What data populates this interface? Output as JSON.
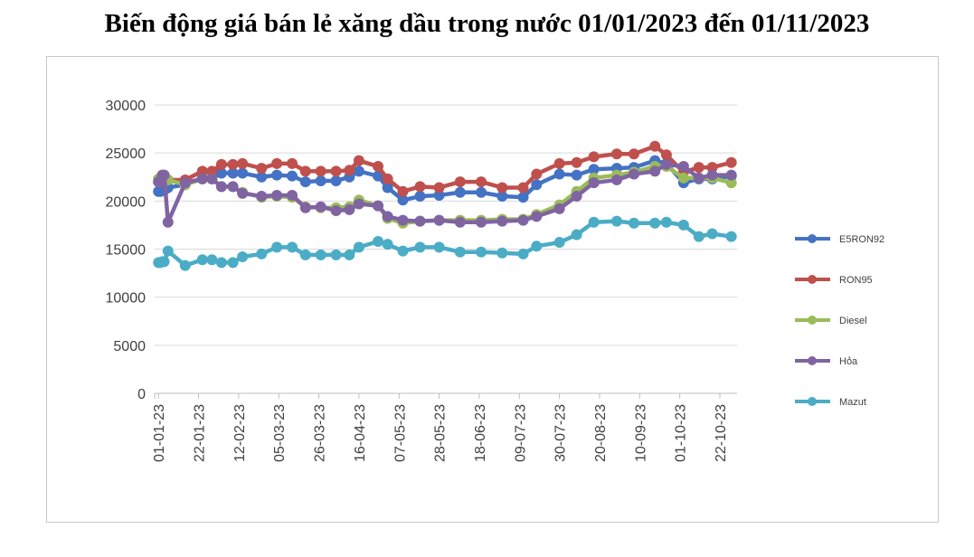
{
  "chart_data": {
    "type": "line",
    "title": "Biến động giá bán lẻ xăng dầu trong nước 01/01/2023 đến 01/11/2023",
    "xlabel": "",
    "ylabel": "",
    "ylim": [
      0,
      30000
    ],
    "yticks": [
      "0",
      "5000",
      "10000",
      "15000",
      "20000",
      "25000",
      "30000"
    ],
    "grid": true,
    "legend_position": "right",
    "tick_labels": [
      "01-01-23",
      "22-01-23",
      "12-02-23",
      "05-03-23",
      "26-03-23",
      "16-04-23",
      "07-05-23",
      "28-05-23",
      "18-06-23",
      "09-07-23",
      "30-07-23",
      "20-08-23",
      "10-09-23",
      "01-10-23",
      "22-10-23"
    ],
    "tick_days": [
      0,
      21,
      42,
      63,
      84,
      105,
      126,
      147,
      168,
      189,
      210,
      231,
      252,
      273,
      294
    ],
    "x_range_days": [
      -2,
      303
    ],
    "x": [
      0,
      1,
      2,
      3,
      5,
      14,
      23,
      28,
      33,
      39,
      44,
      54,
      62,
      70,
      77,
      85,
      93,
      100,
      105,
      115,
      120,
      128,
      137,
      147,
      158,
      169,
      180,
      191,
      198,
      210,
      219,
      228,
      240,
      249,
      260,
      266,
      275,
      283,
      290,
      300
    ],
    "series": [
      {
        "name": "E5RON92",
        "color": "#4472C4",
        "values": [
          21000,
          21000,
          21300,
          21100,
          21400,
          21700,
          22400,
          22400,
          22900,
          22900,
          22900,
          22500,
          22700,
          22600,
          22000,
          22100,
          22100,
          22500,
          23100,
          22600,
          21400,
          20100,
          20500,
          20600,
          20900,
          20900,
          20500,
          20400,
          21700,
          22800,
          22700,
          23300,
          23400,
          23500,
          24200,
          23900,
          21900,
          22300,
          22300,
          22600
        ]
      },
      {
        "name": "RON95",
        "color": "#C0504D",
        "values": [
          22000,
          22000,
          22100,
          22000,
          22200,
          22200,
          23100,
          23100,
          23800,
          23800,
          23900,
          23400,
          23900,
          23900,
          23100,
          23100,
          23100,
          23200,
          24200,
          23600,
          22300,
          21000,
          21500,
          21400,
          22000,
          22000,
          21400,
          21400,
          22800,
          23900,
          24000,
          24600,
          24900,
          24900,
          25700,
          24800,
          23000,
          23500,
          23500,
          24000
        ]
      },
      {
        "name": "Diesel",
        "color": "#9BBB59",
        "values": [
          22300,
          22300,
          22300,
          22300,
          22200,
          21700,
          22300,
          22300,
          21500,
          21500,
          20900,
          20400,
          20500,
          20400,
          19400,
          19300,
          19300,
          19400,
          20100,
          19500,
          18200,
          17700,
          17900,
          18000,
          18000,
          18000,
          18100,
          18100,
          18600,
          19600,
          21000,
          22400,
          22700,
          23000,
          23600,
          23600,
          22400,
          22400,
          22400,
          21900
        ]
      },
      {
        "name": "Hỏa",
        "color": "#8064A2",
        "values": [
          22000,
          22000,
          22700,
          22700,
          17800,
          21900,
          22300,
          22300,
          21500,
          21500,
          20800,
          20500,
          20600,
          20600,
          19300,
          19400,
          19000,
          19100,
          19700,
          19500,
          18400,
          18000,
          17900,
          18000,
          17800,
          17800,
          17900,
          18000,
          18400,
          19200,
          20500,
          21900,
          22200,
          22800,
          23100,
          23800,
          23600,
          22400,
          22700,
          22700
        ]
      },
      {
        "name": "Mazut",
        "color": "#4BACC6",
        "values": [
          13600,
          13600,
          13700,
          13700,
          14800,
          13300,
          13900,
          13900,
          13600,
          13600,
          14200,
          14500,
          15200,
          15200,
          14400,
          14400,
          14400,
          14400,
          15200,
          15800,
          15500,
          14800,
          15200,
          15200,
          14700,
          14700,
          14600,
          14500,
          15300,
          15700,
          16500,
          17800,
          17900,
          17700,
          17700,
          17800,
          17500,
          16300,
          16600,
          16300
        ]
      }
    ]
  }
}
